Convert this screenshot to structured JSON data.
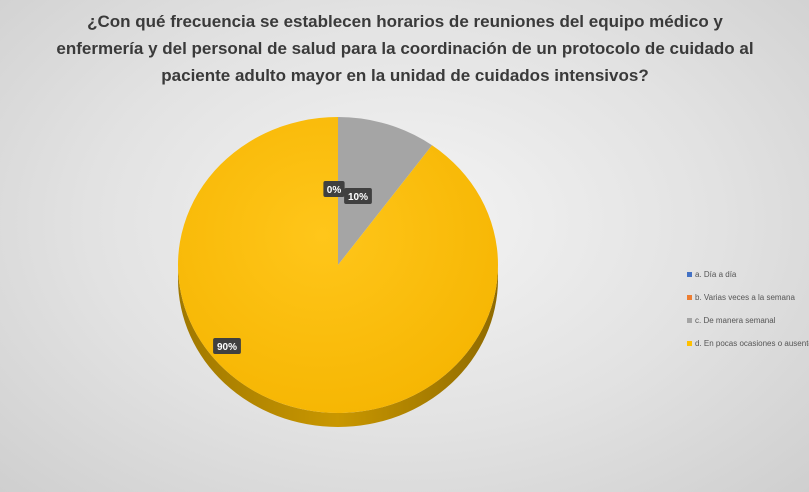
{
  "chart_data": {
    "type": "pie",
    "title_lines": [
      "¿Con qué frecuencia se establecen horarios de reuniones del equipo médico y",
      "enfermería y del personal de salud para la coordinación de un protocolo de cuidado al",
      "paciente adulto mayor en la unidad de cuidados intensivos?"
    ],
    "categories": [
      "a. Día a día",
      "b. Varias veces a la semana",
      "c. De manera semanal",
      "d. En pocas ocasiones o ausente"
    ],
    "values": [
      0,
      0,
      10,
      90
    ],
    "data_labels": [
      "0%",
      "0%",
      "10%",
      "90%"
    ],
    "colors": [
      "#4472c4",
      "#ed7d31",
      "#a5a5a5",
      "#ffc000"
    ],
    "legend_position": "right"
  }
}
